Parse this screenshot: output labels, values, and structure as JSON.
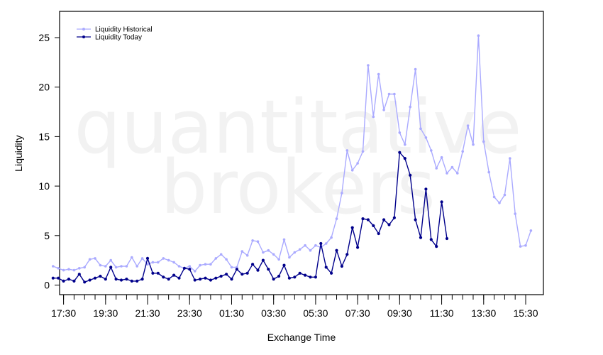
{
  "chart_data": {
    "type": "line",
    "xlabel": "Exchange Time",
    "ylabel": "Liquidity",
    "watermark": [
      "quantitative",
      "brokers"
    ],
    "ylim": [
      -1,
      27
    ],
    "y_ticks": [
      0,
      5,
      10,
      15,
      20,
      25
    ],
    "x_tick_labels": [
      "17:30",
      "19:30",
      "21:30",
      "23:30",
      "01:30",
      "03:30",
      "05:30",
      "07:30",
      "09:30",
      "11:30",
      "13:30",
      "15:30"
    ],
    "x_ticks_minutes_from_1630": [
      60,
      180,
      300,
      420,
      540,
      660,
      780,
      900,
      1020,
      1140,
      1260,
      1380
    ],
    "x_minor_tick_step_minutes": 30,
    "x_start_time": "17:00",
    "x_interval_minutes": 15,
    "legend_position": "top-left",
    "grid": false,
    "series": [
      {
        "name": "Liquidity Historical",
        "color": "#aaaaff",
        "values": [
          1.9,
          1.7,
          1.5,
          1.6,
          1.5,
          1.7,
          1.8,
          2.6,
          2.7,
          2.0,
          1.9,
          2.5,
          1.8,
          1.9,
          1.9,
          2.8,
          1.9,
          2.7,
          2.1,
          2.3,
          2.3,
          2.7,
          2.5,
          2.3,
          1.9,
          1.7,
          1.9,
          1.4,
          2.0,
          2.1,
          2.1,
          2.7,
          3.1,
          2.6,
          1.8,
          1.8,
          3.4,
          3.0,
          4.5,
          4.4,
          3.3,
          3.5,
          3.1,
          2.6,
          4.6,
          2.8,
          3.3,
          3.6,
          4.0,
          3.5,
          4.0,
          3.8,
          4.2,
          4.8,
          6.7,
          9.3,
          13.6,
          11.6,
          12.3,
          13.5,
          22.2,
          17.0,
          21.3,
          17.7,
          19.3,
          19.3,
          15.4,
          14.2,
          18.0,
          21.8,
          15.8,
          14.9,
          13.6,
          11.8,
          12.9,
          11.3,
          11.9,
          11.3,
          13.5,
          16.1,
          14.2,
          25.2,
          14.5,
          11.4,
          8.9,
          8.3,
          9.1,
          12.8,
          7.2,
          3.9,
          4.0,
          5.5
        ]
      },
      {
        "name": "Liquidity Today",
        "color": "#00008b",
        "values": [
          0.7,
          0.7,
          0.4,
          0.6,
          0.4,
          1.1,
          0.3,
          0.5,
          0.7,
          0.9,
          0.6,
          1.8,
          0.6,
          0.5,
          0.6,
          0.4,
          0.4,
          0.6,
          2.7,
          1.2,
          1.2,
          0.8,
          0.6,
          1.0,
          0.7,
          1.7,
          1.6,
          0.5,
          0.6,
          0.7,
          0.5,
          0.7,
          0.9,
          1.1,
          0.6,
          1.6,
          1.1,
          1.2,
          2.1,
          1.5,
          2.5,
          1.6,
          0.6,
          0.9,
          2.0,
          0.7,
          0.8,
          1.2,
          1.0,
          0.8,
          0.8,
          4.2,
          1.8,
          1.2,
          3.5,
          1.9,
          3.1,
          5.8,
          3.8,
          6.7,
          6.6,
          6.0,
          5.2,
          6.6,
          6.1,
          6.8,
          13.4,
          12.8,
          11.1,
          6.6,
          4.8,
          9.7,
          4.6,
          3.9,
          8.4,
          4.7
        ]
      }
    ]
  }
}
